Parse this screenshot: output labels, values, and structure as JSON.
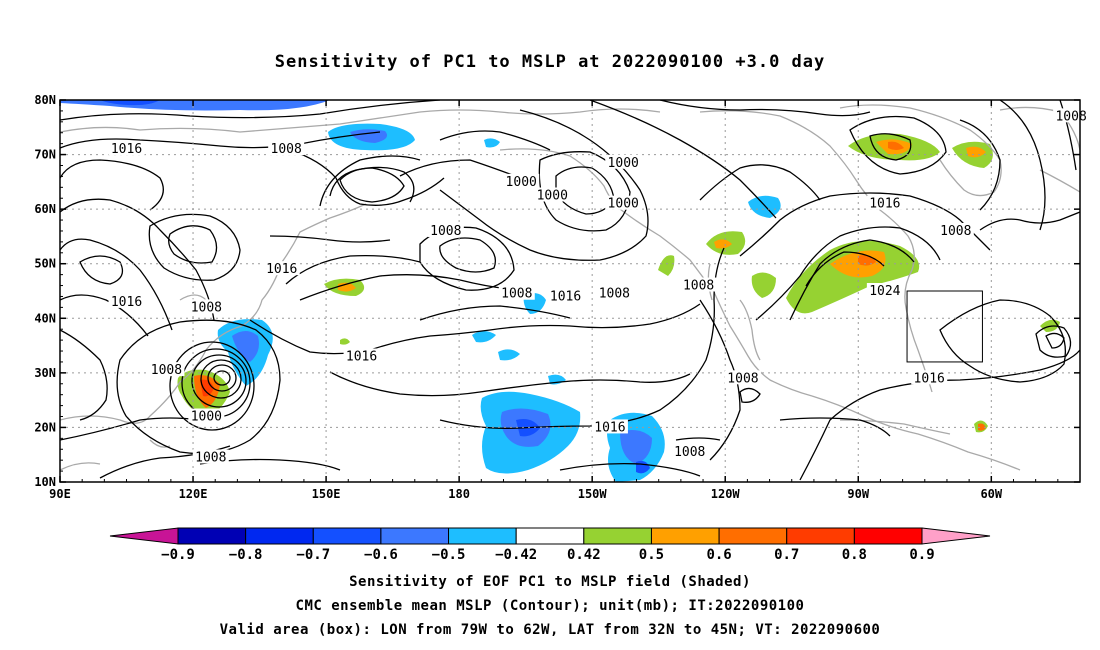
{
  "title": "Sensitivity of PC1 to MSLP at 2022090100 +3.0 day",
  "lat_labels": [
    "80N",
    "70N",
    "60N",
    "50N",
    "40N",
    "30N",
    "20N",
    "10N"
  ],
  "lon_labels": [
    "90E",
    "120E",
    "150E",
    "180",
    "150W",
    "120W",
    "90W",
    "60W"
  ],
  "contour_labels": [
    {
      "text": "1016",
      "lon": 105,
      "lat": 71
    },
    {
      "text": "1008",
      "lon": 141,
      "lat": 71
    },
    {
      "text": "1000",
      "lon": 194,
      "lat": 65
    },
    {
      "text": "1000",
      "lon": 201,
      "lat": 62.5
    },
    {
      "text": "1000",
      "lon": 217,
      "lat": 68.5
    },
    {
      "text": "1000",
      "lon": 217,
      "lat": 61
    },
    {
      "text": "1008",
      "lon": 318,
      "lat": 77
    },
    {
      "text": "1016",
      "lon": 276,
      "lat": 61
    },
    {
      "text": "1008",
      "lon": 292,
      "lat": 56
    },
    {
      "text": "1008",
      "lon": 177,
      "lat": 56
    },
    {
      "text": "1016",
      "lon": 140,
      "lat": 49
    },
    {
      "text": "1016",
      "lon": 105,
      "lat": 43
    },
    {
      "text": "1008",
      "lon": 123,
      "lat": 42
    },
    {
      "text": "1008",
      "lon": 193,
      "lat": 44.5
    },
    {
      "text": "1016",
      "lon": 204,
      "lat": 44
    },
    {
      "text": "1008",
      "lon": 215,
      "lat": 44.5
    },
    {
      "text": "1008",
      "lon": 234,
      "lat": 46
    },
    {
      "text": "1024",
      "lon": 276,
      "lat": 45
    },
    {
      "text": "1016",
      "lon": 158,
      "lat": 33
    },
    {
      "text": "1008",
      "lon": 114,
      "lat": 30.5
    },
    {
      "text": "1000",
      "lon": 123,
      "lat": 22
    },
    {
      "text": "1008",
      "lon": 124,
      "lat": 14.5
    },
    {
      "text": "1016",
      "lon": 214,
      "lat": 20
    },
    {
      "text": "1008",
      "lon": 232,
      "lat": 15.5
    },
    {
      "text": "1008",
      "lon": 244,
      "lat": 29
    },
    {
      "text": "1016",
      "lon": 286,
      "lat": 29
    }
  ],
  "colorbar": {
    "labels": [
      "−0.9",
      "−0.8",
      "−0.7",
      "−0.6",
      "−0.5",
      "−0.42",
      "0.42",
      "0.5",
      "0.6",
      "0.7",
      "0.8",
      "0.9"
    ],
    "colors": [
      "#0000b4",
      "#0028f0",
      "#1450ff",
      "#3c78ff",
      "#1ebeff",
      "#ffffff",
      "#96d232",
      "#ffa000",
      "#ff6e00",
      "#ff3c00",
      "#ff0000"
    ],
    "low_color": "#c81496",
    "high_color": "#ffa0c8"
  },
  "caption_lines": [
    "Sensitivity of EOF PC1 to MSLP field (Shaded)",
    "CMC ensemble mean MSLP (Contour); unit(mb); IT:2022090100",
    "Valid area (box): LON from 79W to 62W, LAT from 32N to 45N; VT: 2022090600"
  ],
  "valid_box": {
    "lon_min": -79,
    "lon_max": -62,
    "lat_min": 32,
    "lat_max": 45
  }
}
